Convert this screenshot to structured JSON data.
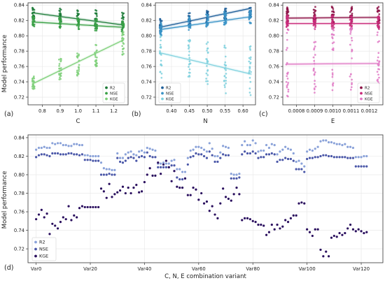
{
  "figure": {
    "shared_ylabel": "Model performance"
  },
  "chart_data": [
    {
      "panel_label": "(a)",
      "type": "scatter",
      "xlabel": "C",
      "xlim": [
        0.72,
        1.28
      ],
      "ylim": [
        0.71,
        0.843
      ],
      "xticks": [
        {
          "v": 0.8,
          "t": "0.8"
        },
        {
          "v": 0.9,
          "t": "0.9"
        },
        {
          "v": 1.0,
          "t": "1.0"
        },
        {
          "v": 1.1,
          "t": "1.1"
        },
        {
          "v": 1.2,
          "t": "1.2"
        }
      ],
      "yticks": [
        {
          "v": 0.72,
          "t": "0.72"
        },
        {
          "v": 0.74,
          "t": "0.74"
        },
        {
          "v": 0.76,
          "t": "0.76"
        },
        {
          "v": 0.78,
          "t": "0.78"
        },
        {
          "v": 0.8,
          "t": "0.80"
        },
        {
          "v": 0.82,
          "t": "0.82"
        },
        {
          "v": 0.84,
          "t": "0.84"
        }
      ],
      "x_values": [
        0.75,
        0.9,
        1.0,
        1.1,
        1.25
      ],
      "legend_position": "lower-right",
      "series": [
        {
          "name": "R2",
          "color": "#1b7a37",
          "spread": [
            [
              0.82,
              0.837
            ],
            [
              0.818,
              0.836
            ],
            [
              0.817,
              0.835
            ],
            [
              0.812,
              0.834
            ],
            [
              0.81,
              0.832
            ]
          ],
          "fit": [
            0.83,
            0.814
          ]
        },
        {
          "name": "NSE",
          "color": "#3aa046",
          "spread": [
            [
              0.812,
              0.826
            ],
            [
              0.81,
              0.825
            ],
            [
              0.808,
              0.823
            ],
            [
              0.806,
              0.822
            ],
            [
              0.804,
              0.82
            ]
          ],
          "fit": [
            0.818,
            0.811
          ]
        },
        {
          "name": "KGE",
          "color": "#7fd07a",
          "spread": [
            [
              0.73,
              0.748
            ],
            [
              0.74,
              0.77
            ],
            [
              0.748,
              0.778
            ],
            [
              0.76,
              0.79
            ],
            [
              0.775,
              0.805
            ]
          ],
          "fit": [
            0.737,
            0.795
          ]
        }
      ]
    },
    {
      "panel_label": "(b)",
      "type": "scatter",
      "xlabel": "N",
      "xlim": [
        0.355,
        0.635
      ],
      "ylim": [
        0.71,
        0.843
      ],
      "xticks": [
        {
          "v": 0.4,
          "t": "0.40"
        },
        {
          "v": 0.45,
          "t": "0.45"
        },
        {
          "v": 0.5,
          "t": "0.50"
        },
        {
          "v": 0.55,
          "t": "0.55"
        },
        {
          "v": 0.6,
          "t": "0.60"
        }
      ],
      "yticks": [
        {
          "v": 0.72,
          "t": "0.72"
        },
        {
          "v": 0.74,
          "t": "0.74"
        },
        {
          "v": 0.76,
          "t": "0.76"
        },
        {
          "v": 0.78,
          "t": "0.78"
        },
        {
          "v": 0.8,
          "t": "0.80"
        },
        {
          "v": 0.82,
          "t": "0.82"
        },
        {
          "v": 0.84,
          "t": "0.84"
        }
      ],
      "x_values": [
        0.37,
        0.45,
        0.5,
        0.55,
        0.62
      ],
      "legend_position": "lower-left",
      "series": [
        {
          "name": "R2",
          "color": "#1f5f99",
          "spread": [
            [
              0.805,
              0.822
            ],
            [
              0.812,
              0.83
            ],
            [
              0.815,
              0.833
            ],
            [
              0.82,
              0.836
            ],
            [
              0.823,
              0.838
            ]
          ],
          "fit": [
            0.811,
            0.836
          ]
        },
        {
          "name": "NSE",
          "color": "#3a93c7",
          "spread": [
            [
              0.8,
              0.818
            ],
            [
              0.806,
              0.825
            ],
            [
              0.81,
              0.828
            ],
            [
              0.814,
              0.832
            ],
            [
              0.816,
              0.834
            ]
          ],
          "fit": [
            0.808,
            0.825
          ]
        },
        {
          "name": "KGE",
          "color": "#7fd1de",
          "spread": [
            [
              0.735,
              0.8
            ],
            [
              0.735,
              0.795
            ],
            [
              0.73,
              0.792
            ],
            [
              0.725,
              0.79
            ],
            [
              0.718,
              0.787
            ]
          ],
          "fit": [
            0.778,
            0.75
          ]
        }
      ]
    },
    {
      "panel_label": "(c)",
      "type": "scatter",
      "xlabel": "E",
      "xlim": [
        0.000725,
        0.001275
      ],
      "ylim": [
        0.71,
        0.843
      ],
      "xticks": [
        {
          "v": 0.0008,
          "t": "0.0008"
        },
        {
          "v": 0.0009,
          "t": "0.0009"
        },
        {
          "v": 0.001,
          "t": "0.0010"
        },
        {
          "v": 0.0011,
          "t": "0.0011"
        },
        {
          "v": 0.0012,
          "t": "0.0012"
        }
      ],
      "yticks": [
        {
          "v": 0.72,
          "t": "0.72"
        },
        {
          "v": 0.74,
          "t": "0.74"
        },
        {
          "v": 0.76,
          "t": "0.76"
        },
        {
          "v": 0.78,
          "t": "0.78"
        },
        {
          "v": 0.8,
          "t": "0.80"
        },
        {
          "v": 0.82,
          "t": "0.82"
        },
        {
          "v": 0.84,
          "t": "0.84"
        }
      ],
      "x_values": [
        0.00075,
        0.0009,
        0.001,
        0.0011,
        0.00125
      ],
      "legend_position": "lower-right",
      "series": [
        {
          "name": "R2",
          "color": "#8c1045",
          "spread": [
            [
              0.815,
              0.838
            ],
            [
              0.815,
              0.838
            ],
            [
              0.815,
              0.838
            ],
            [
              0.815,
              0.838
            ],
            [
              0.815,
              0.838
            ]
          ],
          "fit": [
            0.823,
            0.824
          ]
        },
        {
          "name": "NSE",
          "color": "#c92a7a",
          "spread": [
            [
              0.808,
              0.826
            ],
            [
              0.808,
              0.826
            ],
            [
              0.808,
              0.826
            ],
            [
              0.808,
              0.826
            ],
            [
              0.808,
              0.826
            ]
          ],
          "fit": [
            0.816,
            0.816
          ]
        },
        {
          "name": "KGE",
          "color": "#e07ac5",
          "spread": [
            [
              0.72,
              0.81
            ],
            [
              0.722,
              0.81
            ],
            [
              0.722,
              0.81
            ],
            [
              0.722,
              0.81
            ],
            [
              0.722,
              0.81
            ]
          ],
          "fit": [
            0.763,
            0.764
          ]
        }
      ]
    },
    {
      "panel_label": "(d)",
      "type": "scatter",
      "xlabel": "C, N, E combination variant",
      "xlim": [
        -3,
        128
      ],
      "ylim": [
        0.705,
        0.843
      ],
      "xticks": [
        {
          "v": 0,
          "t": "Var0"
        },
        {
          "v": 20,
          "t": "Var20"
        },
        {
          "v": 40,
          "t": "Var40"
        },
        {
          "v": 60,
          "t": "Var60"
        },
        {
          "v": 80,
          "t": "Var80"
        },
        {
          "v": 100,
          "t": "Var100"
        },
        {
          "v": 120,
          "t": "Var120"
        }
      ],
      "yticks": [
        {
          "v": 0.72,
          "t": "0.72"
        },
        {
          "v": 0.74,
          "t": "0.74"
        },
        {
          "v": 0.76,
          "t": "0.76"
        },
        {
          "v": 0.78,
          "t": "0.78"
        },
        {
          "v": 0.8,
          "t": "0.80"
        },
        {
          "v": 0.82,
          "t": "0.82"
        },
        {
          "v": 0.84,
          "t": "0.84"
        }
      ],
      "legend_position": "lower-left",
      "series": [
        {
          "name": "R2",
          "color": "#8aa2d9",
          "y": [
            0.827,
            0.829,
            0.829,
            0.83,
            0.829,
            0.829,
            0.834,
            0.833,
            0.834,
            0.834,
            0.832,
            0.832,
            0.831,
            0.831,
            0.833,
            0.833,
            0.832,
            0.832,
            0.821,
            0.821,
            0.82,
            0.82,
            0.82,
            0.82,
            0.813,
            0.807,
            0.806,
            0.806,
            0.805,
            0.805,
            0.823,
            0.818,
            0.818,
            0.822,
            0.824,
            0.825,
            0.822,
            0.821,
            0.825,
            0.826,
            0.824,
            0.829,
            0.828,
            0.827,
            0.826,
            0.812,
            0.812,
            0.813,
            0.812,
            0.812,
            0.815,
            0.816,
            0.806,
            0.806,
            0.803,
            0.803,
            0.818,
            0.826,
            0.827,
            0.83,
            0.83,
            0.829,
            0.827,
            0.825,
            0.834,
            0.828,
            0.82,
            0.82,
            0.824,
            0.831,
            0.83,
            0.829,
            0.801,
            0.8,
            0.8,
            0.801,
            0.832,
            0.836,
            0.832,
            0.832,
            0.837,
            0.834,
            0.825,
            0.826,
            0.826,
            0.832,
            0.829,
            0.833,
            0.832,
            0.822,
            0.825,
            0.827,
            0.83,
            0.828,
            0.827,
            0.823,
            0.814,
            0.815,
            0.812,
            0.809,
            0.825,
            0.827,
            0.826,
            0.828,
            0.83,
            0.836,
            0.837,
            0.837,
            0.835,
            0.835,
            0.834,
            0.833,
            0.833,
            0.832,
            0.833,
            0.83,
            0.83,
            0.829,
            0.819,
            0.819,
            0.819,
            0.82,
            0.82
          ]
        },
        {
          "name": "NSE",
          "color": "#4a57a8",
          "y": [
            0.819,
            0.821,
            0.822,
            0.822,
            0.821,
            0.82,
            0.823,
            0.823,
            0.823,
            0.822,
            0.822,
            0.822,
            0.823,
            0.823,
            0.822,
            0.822,
            0.821,
            0.822,
            0.816,
            0.816,
            0.816,
            0.815,
            0.815,
            0.815,
            0.8,
            0.8,
            0.8,
            0.801,
            0.8,
            0.8,
            0.818,
            0.814,
            0.813,
            0.815,
            0.818,
            0.819,
            0.818,
            0.815,
            0.819,
            0.82,
            0.819,
            0.824,
            0.82,
            0.819,
            0.819,
            0.808,
            0.808,
            0.808,
            0.808,
            0.808,
            0.81,
            0.81,
            0.797,
            0.795,
            0.795,
            0.796,
            0.811,
            0.819,
            0.82,
            0.823,
            0.822,
            0.822,
            0.82,
            0.818,
            0.825,
            0.821,
            0.814,
            0.814,
            0.818,
            0.822,
            0.821,
            0.821,
            0.796,
            0.796,
            0.796,
            0.797,
            0.822,
            0.825,
            0.823,
            0.823,
            0.825,
            0.823,
            0.818,
            0.819,
            0.819,
            0.822,
            0.822,
            0.823,
            0.822,
            0.814,
            0.816,
            0.816,
            0.818,
            0.817,
            0.817,
            0.815,
            0.806,
            0.806,
            0.806,
            0.803,
            0.817,
            0.818,
            0.818,
            0.819,
            0.819,
            0.82,
            0.821,
            0.821,
            0.82,
            0.82,
            0.819,
            0.819,
            0.819,
            0.819,
            0.819,
            0.818,
            0.818,
            0.818,
            0.809,
            0.809,
            0.809,
            0.809,
            0.809
          ]
        },
        {
          "name": "KGE",
          "color": "#2a0f5e",
          "y": [
            0.752,
            0.757,
            0.762,
            0.754,
            0.758,
            0.736,
            0.747,
            0.745,
            0.742,
            0.749,
            0.754,
            0.752,
            0.766,
            0.751,
            0.756,
            0.754,
            0.764,
            0.766,
            0.765,
            0.765,
            0.765,
            0.765,
            0.765,
            0.765,
            0.785,
            0.782,
            0.775,
            0.79,
            0.776,
            0.779,
            0.781,
            0.783,
            0.787,
            0.78,
            0.786,
            0.78,
            0.786,
            0.789,
            0.781,
            0.782,
            0.792,
            0.8,
            0.807,
            0.799,
            0.799,
            0.813,
            0.801,
            0.811,
            0.815,
            0.808,
            0.793,
            0.804,
            0.787,
            0.786,
            0.786,
            0.796,
            0.778,
            0.778,
            0.786,
            0.784,
            0.773,
            0.78,
            0.769,
            0.771,
            0.761,
            0.766,
            0.757,
            0.753,
            0.769,
            0.785,
            0.776,
            0.774,
            0.772,
            0.779,
            0.786,
            0.779,
            0.751,
            0.753,
            0.753,
            0.752,
            0.75,
            0.749,
            0.746,
            0.746,
            0.745,
            0.735,
            0.738,
            0.746,
            0.741,
            0.746,
            0.742,
            0.744,
            0.751,
            0.749,
            0.753,
            0.756,
            0.756,
            0.769,
            0.77,
            0.769,
            0.741,
            0.738,
            0.734,
            0.741,
            0.741,
            0.719,
            0.712,
            0.717,
            0.712,
            0.732,
            0.734,
            0.733,
            0.737,
            0.735,
            0.737,
            0.742,
            0.746,
            0.741,
            0.739,
            0.741,
            0.739,
            0.737,
            0.738
          ]
        }
      ]
    }
  ]
}
